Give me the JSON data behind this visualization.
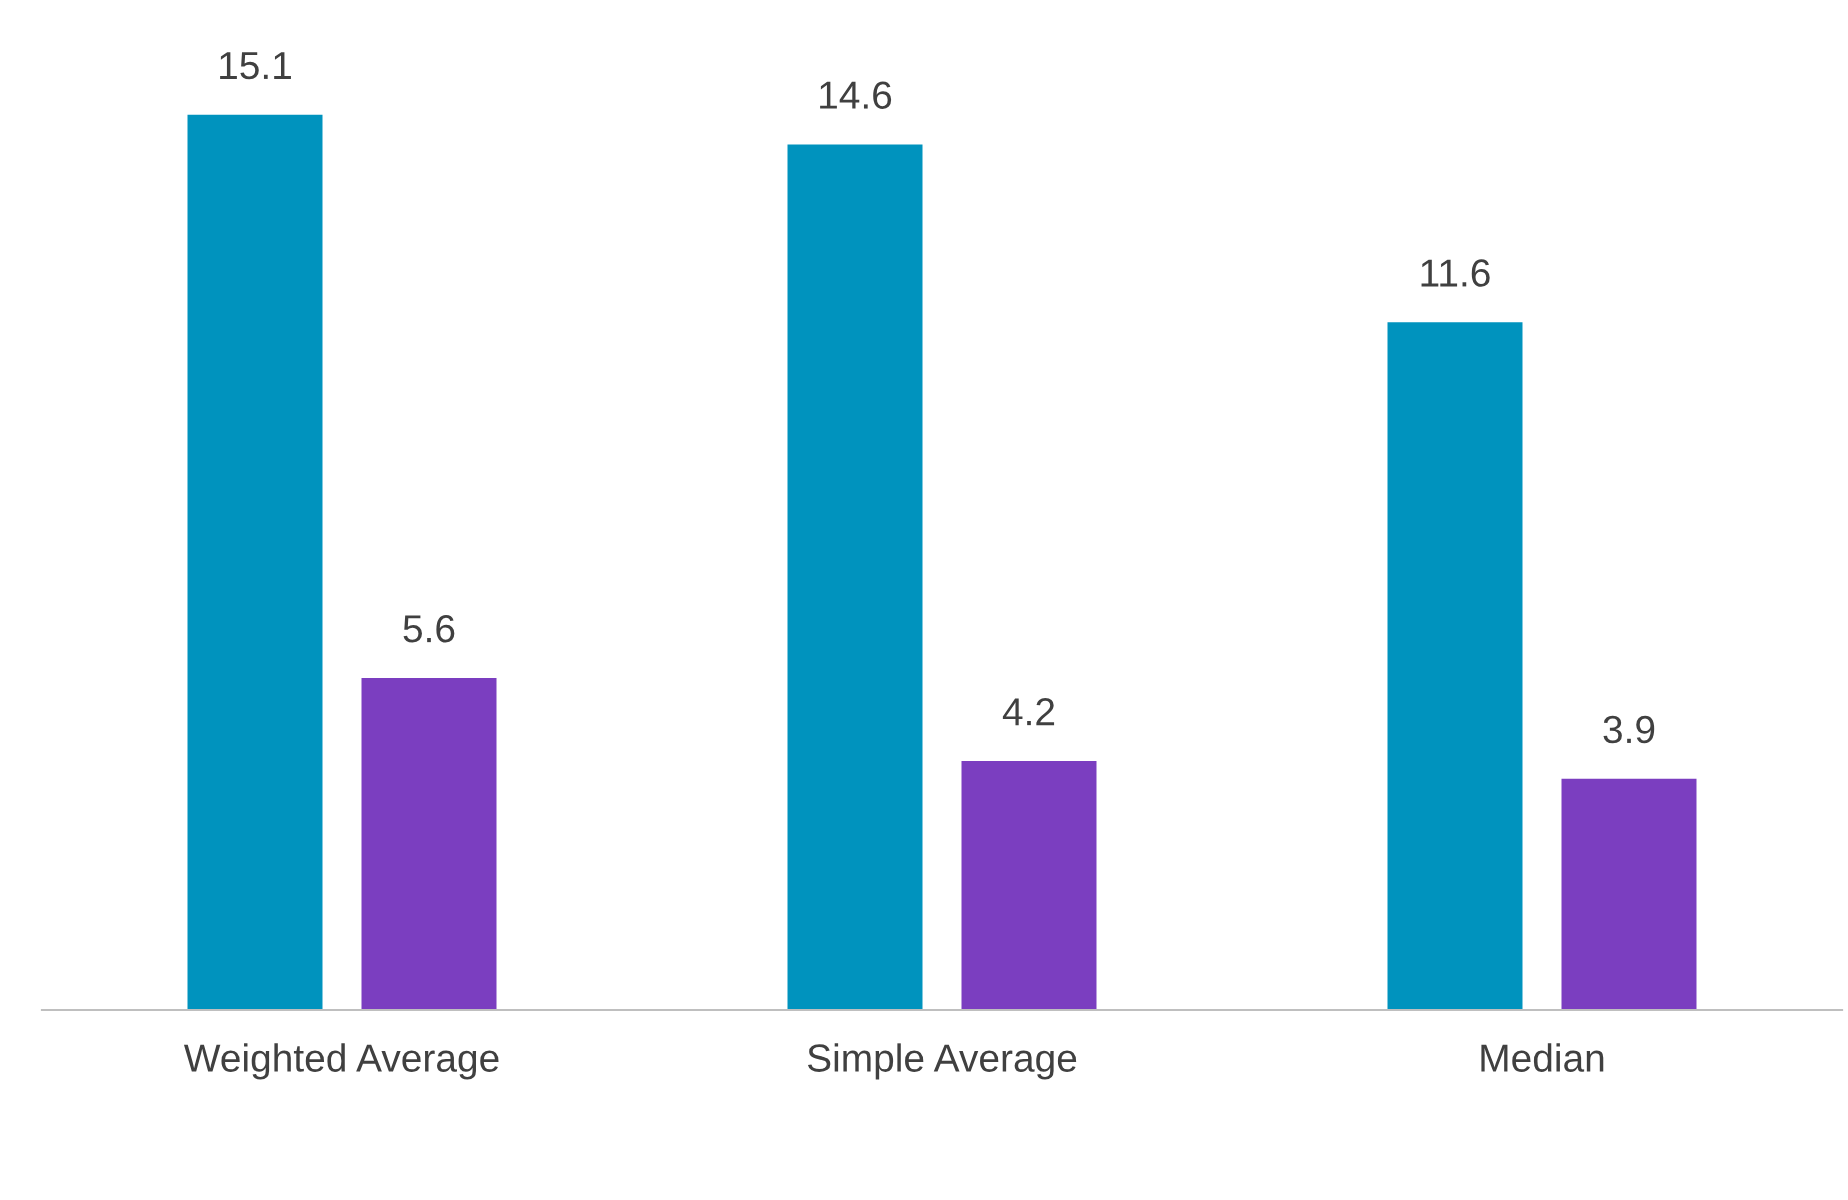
{
  "chart_data": {
    "type": "bar",
    "categories": [
      "Weighted Average",
      "Simple Average",
      "Median"
    ],
    "series": [
      {
        "color": "#0093be",
        "values": [
          15.1,
          14.6,
          11.6
        ]
      },
      {
        "color": "#7b3ec0",
        "values": [
          5.6,
          4.2,
          3.9
        ]
      }
    ],
    "data_labels": true,
    "legend": false
  }
}
